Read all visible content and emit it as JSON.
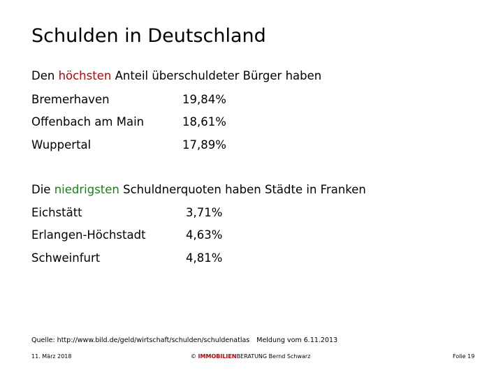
{
  "title": "Schulden in Deutschland",
  "section_high": {
    "heading_pre": "Den ",
    "heading_highlight": "höchsten",
    "heading_post": " Anteil überschuldeter Bürger haben",
    "highlight_color": "#c00000",
    "rows": [
      {
        "city": "Bremerhaven",
        "value": "19,84%"
      },
      {
        "city": "Offenbach am Main",
        "value": "18,61%"
      },
      {
        "city": "Wuppertal",
        "value": "17,89%"
      }
    ]
  },
  "section_low": {
    "heading_pre": "Die ",
    "heading_highlight": "niedrigsten",
    "heading_post": " Schuldnerquoten haben Städte in Franken",
    "highlight_color": "#1a7f1a",
    "rows": [
      {
        "city": "Eichstätt",
        "value": "3,71%"
      },
      {
        "city": "Erlangen-Höchstadt",
        "value": "4,63%"
      },
      {
        "city": "Schweinfurt",
        "value": "4,81%"
      }
    ]
  },
  "source": {
    "text": "Quelle: http://www.bild.de/geld/wirtschaft/schulden/schuldenatlas",
    "date_note": "Meldung vom 6.11.2013"
  },
  "footer": {
    "date": "11. März 2018",
    "copyright_symbol": "©",
    "brand_highlight": "IMMOBILIEN",
    "brand_rest": "BERATUNG",
    "author": "Bernd Schwarz",
    "slide_number": "Folie 19"
  }
}
